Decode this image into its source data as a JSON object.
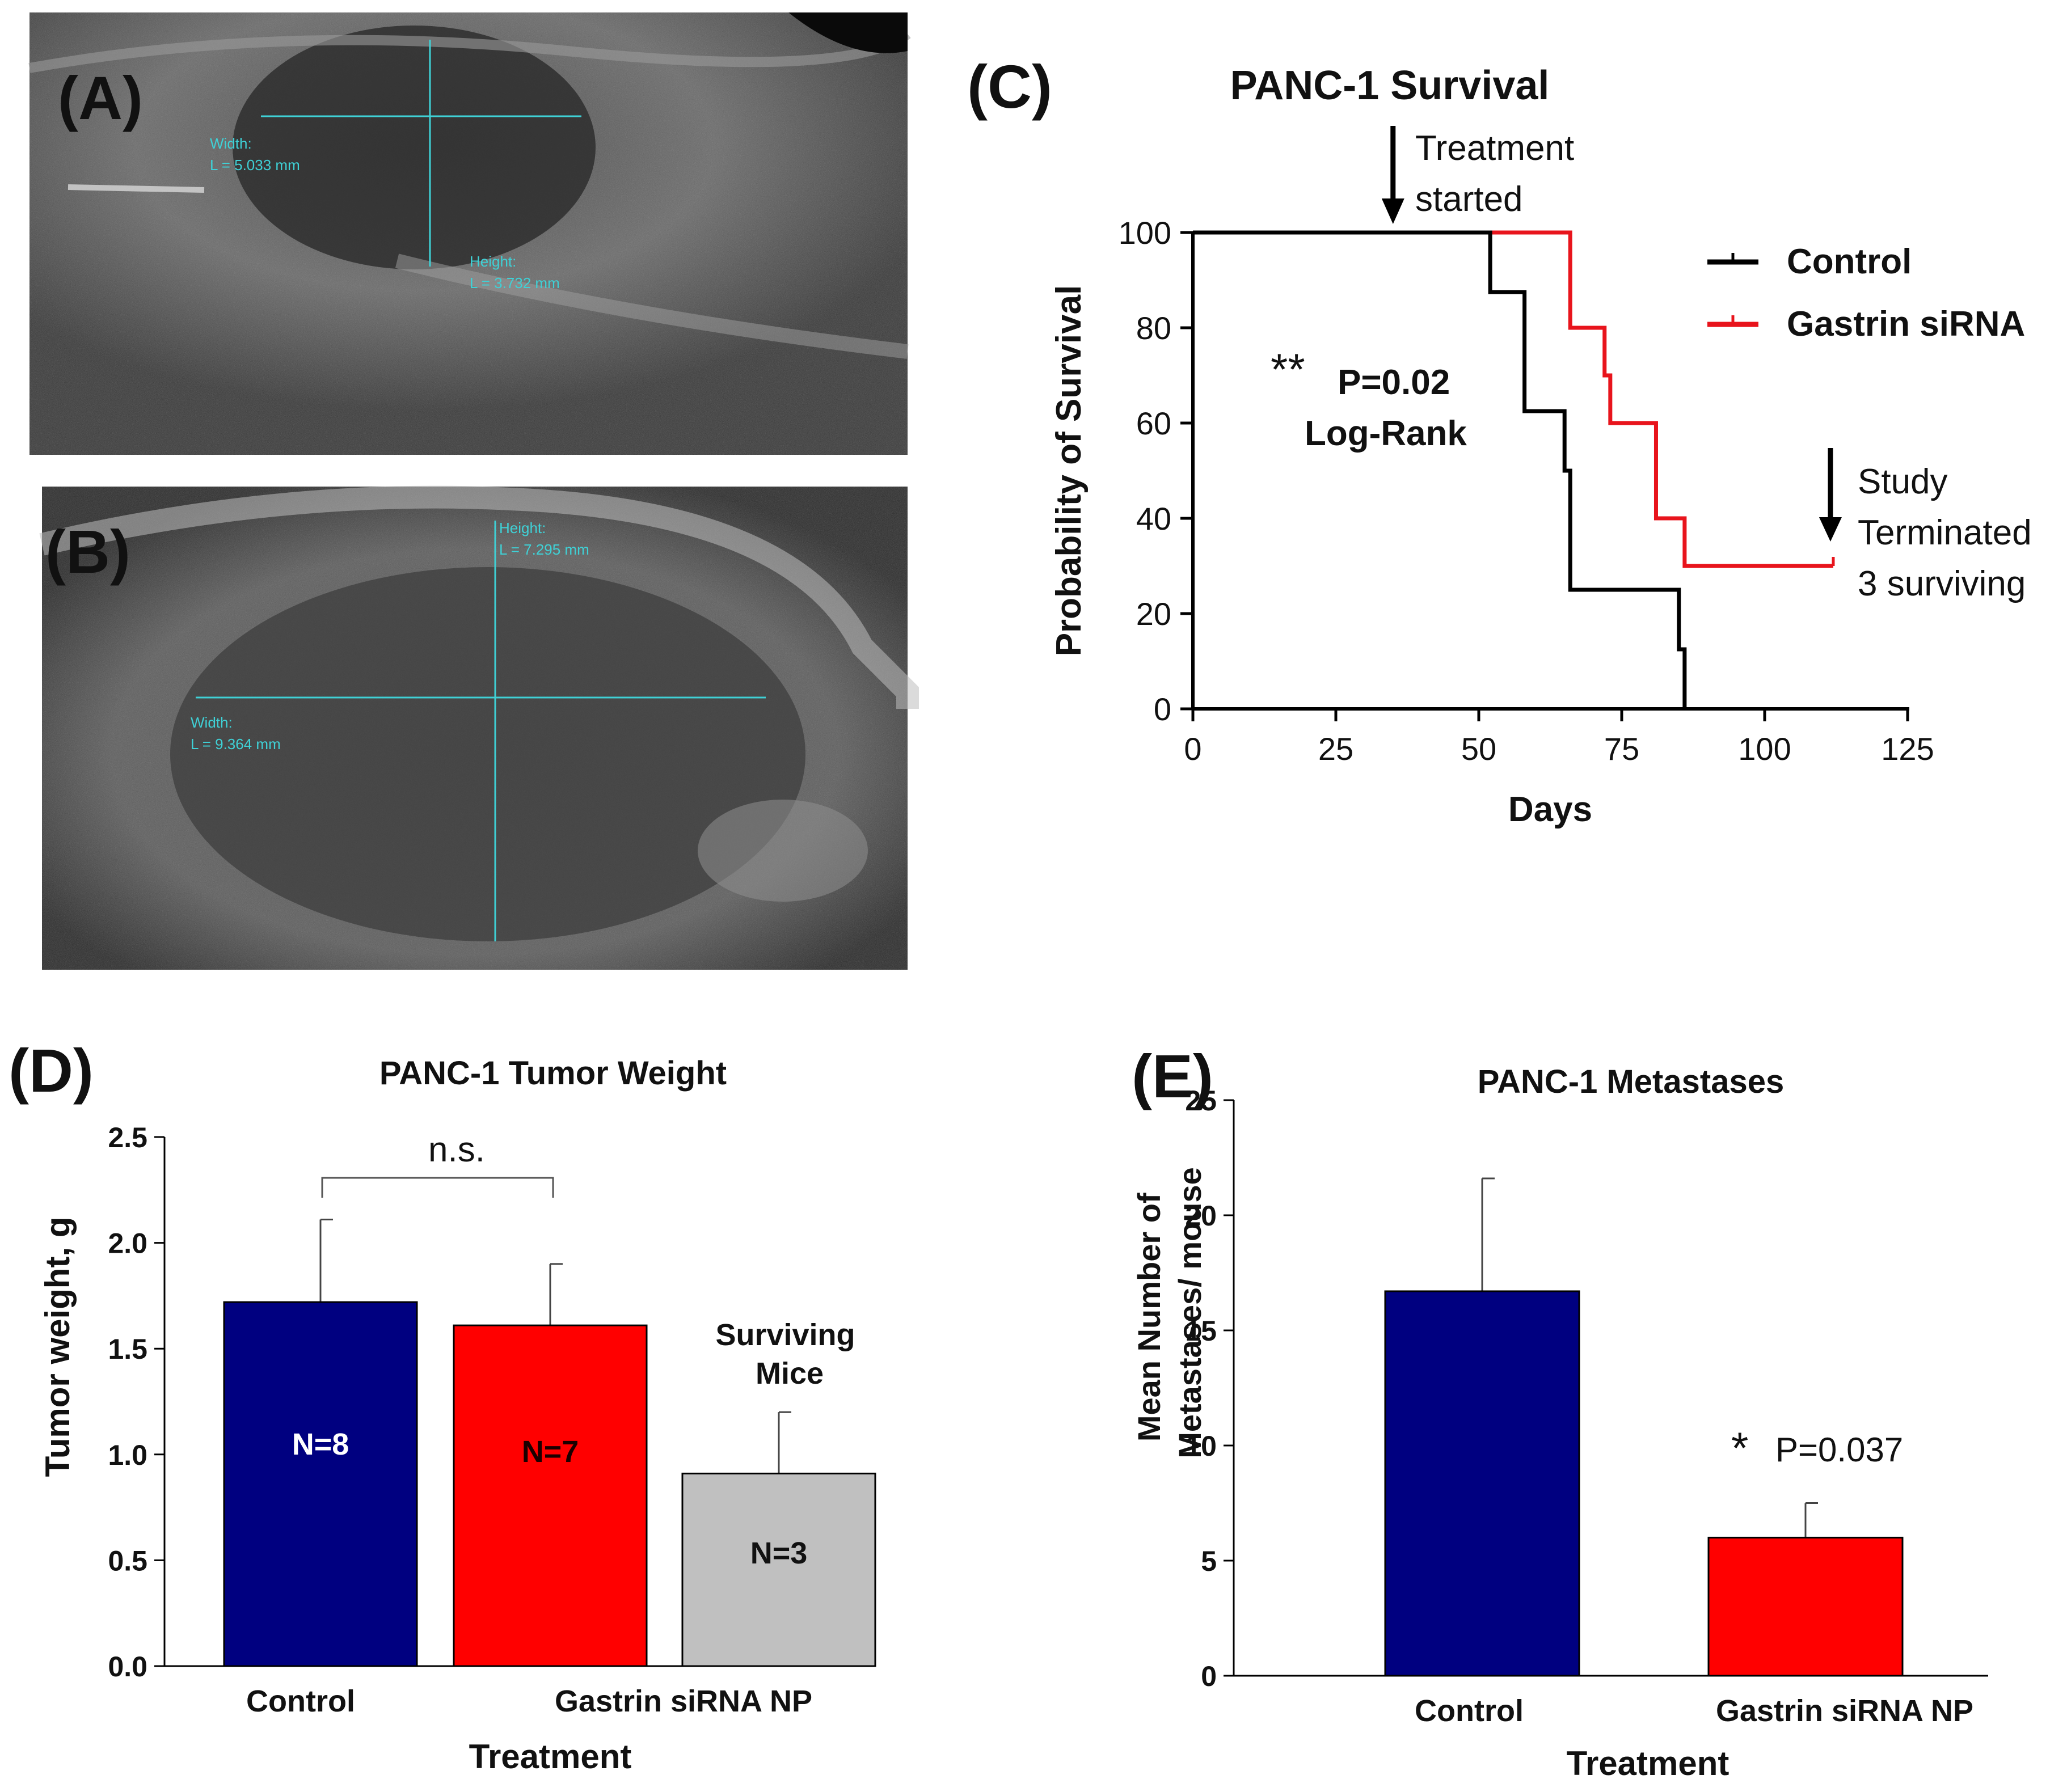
{
  "panels": {
    "a": {
      "label": "(A)",
      "width_measure_label": "Width:",
      "width_measure_value": "L = 5.033 mm",
      "height_measure_label": "Height:",
      "height_measure_value": "L = 3.732 mm"
    },
    "b": {
      "label": "(B)",
      "height_measure_label": "Height:",
      "height_measure_value": "L = 7.295 mm",
      "width_measure_label": "Width:",
      "width_measure_value": "L = 9.364 mm"
    },
    "c": {
      "label": "(C)"
    },
    "d": {
      "label": "(D)"
    },
    "e": {
      "label": "(E)"
    }
  },
  "chart_data": [
    {
      "id": "survival",
      "type": "line",
      "title": "PANC-1 Survival",
      "xlabel": "Days",
      "ylabel": "Probability of Survival",
      "xlim": [
        0,
        125
      ],
      "ylim": [
        0,
        100
      ],
      "xticks": [
        0,
        25,
        50,
        75,
        100,
        125
      ],
      "yticks": [
        0,
        20,
        40,
        60,
        80,
        100
      ],
      "series": [
        {
          "name": "Control",
          "color": "#000000",
          "x": [
            0,
            52,
            52,
            58,
            58,
            65,
            65,
            66,
            66,
            85,
            85,
            86,
            86
          ],
          "y": [
            100,
            100,
            87.5,
            87.5,
            62.5,
            62.5,
            50,
            50,
            25,
            25,
            12.5,
            12.5,
            0
          ]
        },
        {
          "name": "Gastrin siRNA",
          "color": "#e8141c",
          "x": [
            0,
            66,
            66,
            72,
            72,
            73,
            73,
            81,
            81,
            86,
            86,
            112
          ],
          "y": [
            100,
            100,
            80,
            80,
            70,
            70,
            60,
            60,
            40,
            40,
            30,
            30
          ]
        }
      ],
      "annotations": {
        "treatment": "Treatment\nstarted",
        "treatment_day": 35,
        "pvalue_stars": "**",
        "pvalue": "P=0.02",
        "test": "Log-Rank",
        "study_end": "Study\nTerminated\n3 surviving",
        "study_end_day": 112
      }
    },
    {
      "id": "tumor_weight",
      "type": "bar",
      "title": "PANC-1 Tumor Weight",
      "xlabel": "Treatment",
      "ylabel": "Tumor weight, g",
      "ylim": [
        0,
        2.5
      ],
      "yticks": [
        "0.0",
        "0.5",
        "1.0",
        "1.5",
        "2.0",
        "2.5"
      ],
      "categories": [
        "Control",
        "Gastrin siRNA NP",
        ""
      ],
      "values": [
        1.72,
        1.61,
        0.91
      ],
      "errors": [
        0.39,
        0.29,
        0.29
      ],
      "colors": [
        "#000080",
        "#ff0000",
        "#c0c0c0"
      ],
      "bar_labels": [
        "N=8",
        "N=7",
        "N=3"
      ],
      "bar_label_colors": [
        "#ffffff",
        "#1a0000",
        "#111111"
      ],
      "bracket_label": "n.s.",
      "extra_label": "Surviving\nMice"
    },
    {
      "id": "metastases",
      "type": "bar",
      "title": "PANC-1 Metastases",
      "xlabel": "Treatment",
      "ylabel": "Mean Number of\nMetastases/ mouse",
      "ylim": [
        0,
        25
      ],
      "yticks": [
        0,
        5,
        10,
        15,
        20,
        25
      ],
      "categories": [
        "Control",
        "Gastrin siRNA NP"
      ],
      "values": [
        16.7,
        6.0
      ],
      "errors": [
        4.9,
        1.5
      ],
      "colors": [
        "#000080",
        "#ff0000"
      ],
      "significance": "*",
      "pvalue": "P=0.037"
    }
  ]
}
